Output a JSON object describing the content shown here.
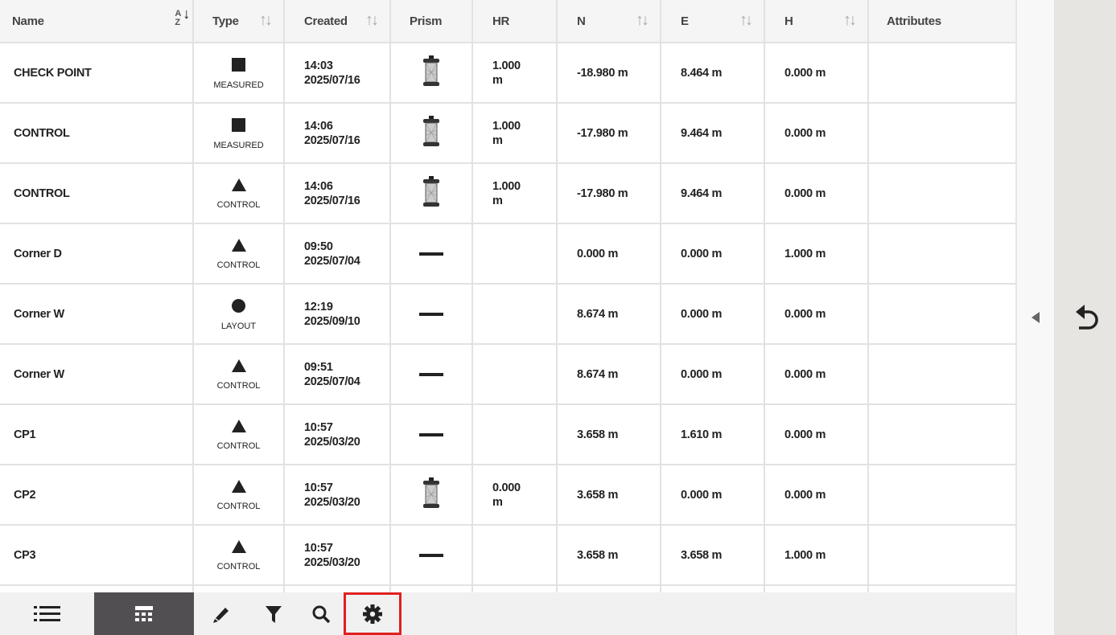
{
  "columns": [
    "Name",
    "Type",
    "Created",
    "Prism",
    "HR",
    "N",
    "E",
    "H",
    "Attributes"
  ],
  "rows": [
    {
      "name": "CHECK POINT",
      "shape": "square",
      "type": "MEASURED",
      "time": "14:03",
      "date": "2025/07/16",
      "prism": "prism-icon",
      "hr1": "1.000",
      "hr2": "m",
      "n": "-18.980 m",
      "e": "8.464 m",
      "h": "0.000 m"
    },
    {
      "name": "CONTROL",
      "shape": "square",
      "type": "MEASURED",
      "time": "14:06",
      "date": "2025/07/16",
      "prism": "prism-icon",
      "hr1": "1.000",
      "hr2": "m",
      "n": "-17.980 m",
      "e": "9.464 m",
      "h": "0.000 m"
    },
    {
      "name": "CONTROL",
      "shape": "triangle",
      "type": "CONTROL",
      "time": "14:06",
      "date": "2025/07/16",
      "prism": "prism-icon",
      "hr1": "1.000",
      "hr2": "m",
      "n": "-17.980 m",
      "e": "9.464 m",
      "h": "0.000 m"
    },
    {
      "name": "Corner D",
      "shape": "triangle",
      "type": "CONTROL",
      "time": "09:50",
      "date": "2025/07/04",
      "prism": "dash-icon",
      "hr1": "",
      "hr2": "",
      "n": "0.000 m",
      "e": "0.000 m",
      "h": "1.000 m"
    },
    {
      "name": "Corner W",
      "shape": "circle",
      "type": "LAYOUT",
      "time": "12:19",
      "date": "2025/09/10",
      "prism": "dash-icon",
      "hr1": "",
      "hr2": "",
      "n": "8.674 m",
      "e": "0.000 m",
      "h": "0.000 m"
    },
    {
      "name": "Corner W",
      "shape": "triangle",
      "type": "CONTROL",
      "time": "09:51",
      "date": "2025/07/04",
      "prism": "dash-icon",
      "hr1": "",
      "hr2": "",
      "n": "8.674 m",
      "e": "0.000 m",
      "h": "0.000 m"
    },
    {
      "name": "CP1",
      "shape": "triangle",
      "type": "CONTROL",
      "time": "10:57",
      "date": "2025/03/20",
      "prism": "dash-icon",
      "hr1": "",
      "hr2": "",
      "n": "3.658 m",
      "e": "1.610 m",
      "h": "0.000 m"
    },
    {
      "name": "CP2",
      "shape": "triangle",
      "type": "CONTROL",
      "time": "10:57",
      "date": "2025/03/20",
      "prism": "prism-icon",
      "hr1": "0.000",
      "hr2": "m",
      "n": "3.658 m",
      "e": "0.000 m",
      "h": "0.000 m"
    },
    {
      "name": "CP3",
      "shape": "triangle",
      "type": "CONTROL",
      "time": "10:57",
      "date": "2025/03/20",
      "prism": "dash-icon",
      "hr1": "",
      "hr2": "",
      "n": "3.658 m",
      "e": "3.658 m",
      "h": "1.000 m"
    }
  ],
  "toolbar": {
    "active": "table-view",
    "highlighted": "settings",
    "highlight_color": "#e02020"
  }
}
